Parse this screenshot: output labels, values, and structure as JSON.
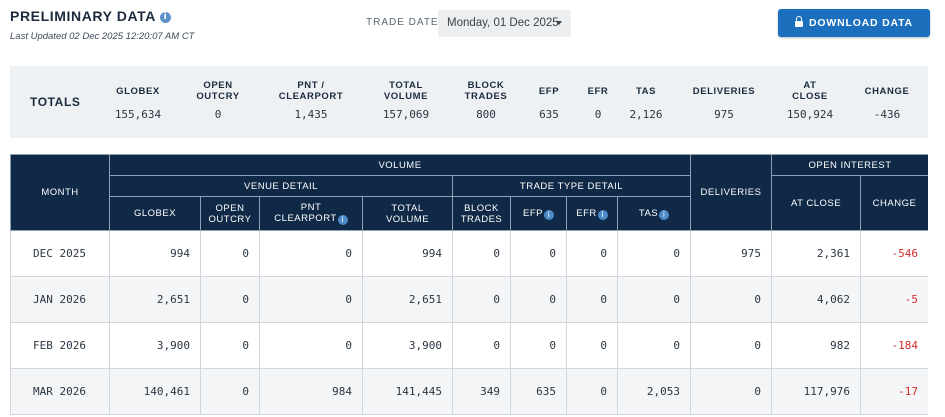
{
  "header": {
    "title": "PRELIMINARY DATA",
    "info_glyph": "i",
    "last_updated": "Last Updated  02 Dec 2025 12:20:07 AM CT",
    "trade_date_label": "TRADE DATE",
    "trade_date_value": "Monday, 01 Dec 2025",
    "download_label": "DOWNLOAD DATA"
  },
  "totals": {
    "label": "TOTALS",
    "columns": [
      {
        "h1": "GLOBEX",
        "h2": "",
        "value": "155,634"
      },
      {
        "h1": "OPEN",
        "h2": "OUTCRY",
        "value": "0"
      },
      {
        "h1": "PNT /",
        "h2": "CLEARPORT",
        "value": "1,435"
      },
      {
        "h1": "TOTAL",
        "h2": "VOLUME",
        "value": "157,069"
      },
      {
        "h1": "BLOCK",
        "h2": "TRADES",
        "value": "800"
      },
      {
        "h1": "EFP",
        "h2": "",
        "value": "635"
      },
      {
        "h1": "EFR",
        "h2": "",
        "value": "0"
      },
      {
        "h1": "TAS",
        "h2": "",
        "value": "2,126"
      },
      {
        "h1": "DELIVERIES",
        "h2": "",
        "value": "975"
      },
      {
        "h1": "AT",
        "h2": "CLOSE",
        "value": "150,924"
      },
      {
        "h1": "CHANGE",
        "h2": "",
        "value": "-436"
      }
    ]
  },
  "table": {
    "group_headers": {
      "month": "MONTH",
      "volume": "VOLUME",
      "venue_detail": "VENUE DETAIL",
      "trade_type_detail": "TRADE TYPE DETAIL",
      "deliveries": "DELIVERIES",
      "open_interest": "OPEN INTEREST"
    },
    "columns": {
      "globex": "GLOBEX",
      "open_outcry_1": "OPEN",
      "open_outcry_2": "OUTCRY",
      "pnt_1": "PNT",
      "pnt_2": "CLEARPORT",
      "total_volume_1": "TOTAL",
      "total_volume_2": "VOLUME",
      "block_1": "BLOCK",
      "block_2": "TRADES",
      "efp": "EFP",
      "efr": "EFR",
      "tas": "TAS",
      "at_close": "AT CLOSE",
      "change": "CHANGE"
    },
    "rows": [
      {
        "month": "DEC 2025",
        "globex": "994",
        "open_outcry": "0",
        "pnt": "0",
        "total_volume": "994",
        "block_trades": "0",
        "efp": "0",
        "efr": "0",
        "tas": "0",
        "deliveries": "975",
        "at_close": "2,361",
        "change": "-546"
      },
      {
        "month": "JAN 2026",
        "globex": "2,651",
        "open_outcry": "0",
        "pnt": "0",
        "total_volume": "2,651",
        "block_trades": "0",
        "efp": "0",
        "efr": "0",
        "tas": "0",
        "deliveries": "0",
        "at_close": "4,062",
        "change": "-5"
      },
      {
        "month": "FEB 2026",
        "globex": "3,900",
        "open_outcry": "0",
        "pnt": "0",
        "total_volume": "3,900",
        "block_trades": "0",
        "efp": "0",
        "efr": "0",
        "tas": "0",
        "deliveries": "0",
        "at_close": "982",
        "change": "-184"
      },
      {
        "month": "MAR 2026",
        "globex": "140,461",
        "open_outcry": "0",
        "pnt": "984",
        "total_volume": "141,445",
        "block_trades": "349",
        "efp": "635",
        "efr": "0",
        "tas": "2,053",
        "deliveries": "0",
        "at_close": "117,976",
        "change": "-17"
      }
    ]
  },
  "colors": {
    "header_navy": "#0f2946",
    "accent_blue": "#1b6fbd",
    "negative_red": "#d62b2b"
  }
}
